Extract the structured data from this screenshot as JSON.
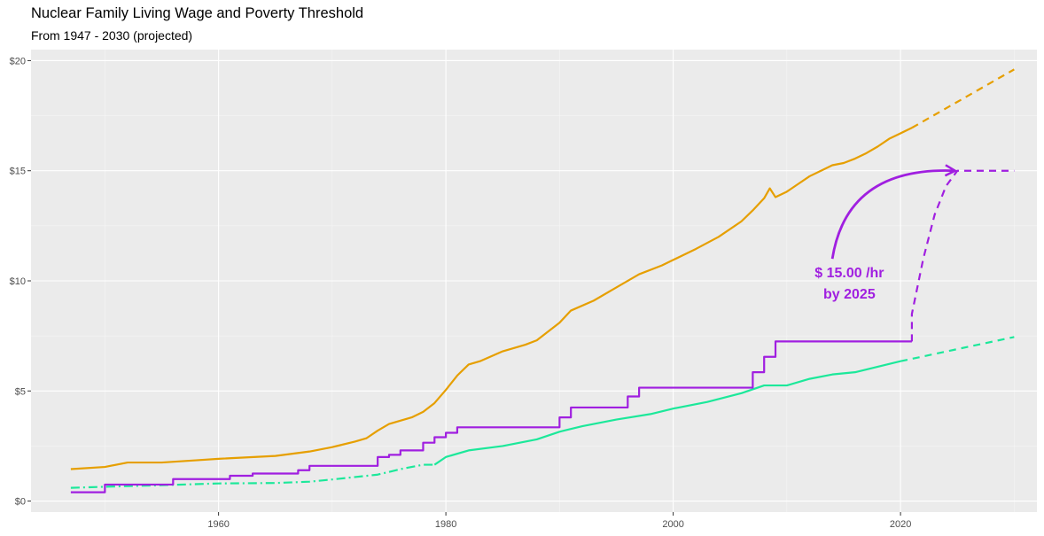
{
  "chart_data": {
    "type": "line",
    "title": "Nuclear Family Living Wage and Poverty Threshold",
    "subtitle": "From 1947 - 2030 (projected)",
    "xlabel": "",
    "ylabel": "",
    "xlim": [
      1943.5,
      2032
    ],
    "ylim": [
      -0.5,
      20.5
    ],
    "x_ticks": [
      1960,
      1980,
      2000,
      2020
    ],
    "y_ticks": [
      0,
      5,
      10,
      15,
      20
    ],
    "y_tick_labels": [
      "$0",
      "$5",
      "$10",
      "$15",
      "$20"
    ],
    "grid": true,
    "legend": "none",
    "series": [
      {
        "color": "#E69F00",
        "style": "solid",
        "points": [
          [
            1947,
            1.45
          ],
          [
            1950,
            1.55
          ],
          [
            1952,
            1.75
          ],
          [
            1955,
            1.75
          ],
          [
            1958,
            1.85
          ],
          [
            1960,
            1.92
          ],
          [
            1965,
            2.05
          ],
          [
            1968,
            2.25
          ],
          [
            1970,
            2.45
          ],
          [
            1972,
            2.7
          ],
          [
            1973,
            2.85
          ],
          [
            1974,
            3.2
          ],
          [
            1975,
            3.5
          ],
          [
            1977,
            3.8
          ],
          [
            1978,
            4.05
          ],
          [
            1979,
            4.45
          ],
          [
            1980,
            5.05
          ],
          [
            1981,
            5.7
          ],
          [
            1982,
            6.2
          ],
          [
            1983,
            6.35
          ],
          [
            1985,
            6.8
          ],
          [
            1987,
            7.1
          ],
          [
            1988,
            7.3
          ],
          [
            1990,
            8.1
          ],
          [
            1991,
            8.65
          ],
          [
            1993,
            9.1
          ],
          [
            1995,
            9.7
          ],
          [
            1997,
            10.3
          ],
          [
            1999,
            10.7
          ],
          [
            2000,
            10.95
          ],
          [
            2002,
            11.45
          ],
          [
            2004,
            12.0
          ],
          [
            2006,
            12.7
          ],
          [
            2007,
            13.2
          ],
          [
            2008,
            13.75
          ],
          [
            2008.5,
            14.2
          ],
          [
            2009,
            13.8
          ],
          [
            2010,
            14.05
          ],
          [
            2011,
            14.4
          ],
          [
            2012,
            14.75
          ],
          [
            2013,
            15.0
          ],
          [
            2014,
            15.25
          ],
          [
            2015,
            15.35
          ],
          [
            2016,
            15.55
          ],
          [
            2017,
            15.8
          ],
          [
            2018,
            16.1
          ],
          [
            2019,
            16.45
          ],
          [
            2020,
            16.7
          ],
          [
            2021,
            16.95
          ]
        ]
      },
      {
        "color": "#E69F00",
        "style": "dashed",
        "points": [
          [
            2021,
            16.95
          ],
          [
            2030,
            19.6
          ]
        ]
      },
      {
        "color": "#1CE89A",
        "style": "dashdot",
        "points": [
          [
            1947,
            0.6
          ],
          [
            1950,
            0.65
          ],
          [
            1955,
            0.72
          ],
          [
            1960,
            0.8
          ],
          [
            1965,
            0.82
          ],
          [
            1968,
            0.88
          ],
          [
            1970,
            0.98
          ],
          [
            1974,
            1.2
          ],
          [
            1976,
            1.45
          ],
          [
            1978,
            1.65
          ],
          [
            1979,
            1.65
          ]
        ]
      },
      {
        "color": "#1CE89A",
        "style": "solid",
        "points": [
          [
            1979,
            1.65
          ],
          [
            1980,
            2.0
          ],
          [
            1982,
            2.3
          ],
          [
            1985,
            2.5
          ],
          [
            1988,
            2.8
          ],
          [
            1990,
            3.15
          ],
          [
            1992,
            3.4
          ],
          [
            1995,
            3.7
          ],
          [
            1998,
            3.95
          ],
          [
            2000,
            4.2
          ],
          [
            2003,
            4.5
          ],
          [
            2006,
            4.9
          ],
          [
            2008,
            5.25
          ],
          [
            2010,
            5.25
          ],
          [
            2012,
            5.55
          ],
          [
            2014,
            5.75
          ],
          [
            2016,
            5.85
          ],
          [
            2018,
            6.1
          ],
          [
            2020,
            6.35
          ]
        ]
      },
      {
        "color": "#1CE89A",
        "style": "dashed",
        "points": [
          [
            2020,
            6.35
          ],
          [
            2030,
            7.45
          ]
        ]
      },
      {
        "color": "#A01FE0",
        "style": "step",
        "points": [
          [
            1947,
            0.4
          ],
          [
            1950,
            0.75
          ],
          [
            1956,
            1.0
          ],
          [
            1961,
            1.15
          ],
          [
            1963,
            1.25
          ],
          [
            1967,
            1.4
          ],
          [
            1968,
            1.6
          ],
          [
            1974,
            2.0
          ],
          [
            1975,
            2.1
          ],
          [
            1976,
            2.3
          ],
          [
            1978,
            2.65
          ],
          [
            1979,
            2.9
          ],
          [
            1980,
            3.1
          ],
          [
            1981,
            3.35
          ],
          [
            1990,
            3.8
          ],
          [
            1991,
            4.25
          ],
          [
            1996,
            4.75
          ],
          [
            1997,
            5.15
          ],
          [
            2007,
            5.85
          ],
          [
            2008,
            6.55
          ],
          [
            2009,
            7.25
          ],
          [
            2021,
            7.25
          ]
        ]
      },
      {
        "color": "#A01FE0",
        "style": "dashed",
        "points": [
          [
            2021,
            7.25
          ],
          [
            2021,
            8.5
          ],
          [
            2022,
            11.0
          ],
          [
            2023,
            13.0
          ],
          [
            2024,
            14.3
          ],
          [
            2025,
            15.0
          ],
          [
            2030,
            15.0
          ]
        ]
      }
    ],
    "annotation": {
      "text_line1": "$ 15.00 /hr",
      "text_line2": "by 2025",
      "color": "#A01FE0",
      "text_anchor_x": 2015.5,
      "arrow_from": [
        2014,
        11.0
      ],
      "arrow_to": [
        2024.8,
        15.0
      ]
    }
  }
}
